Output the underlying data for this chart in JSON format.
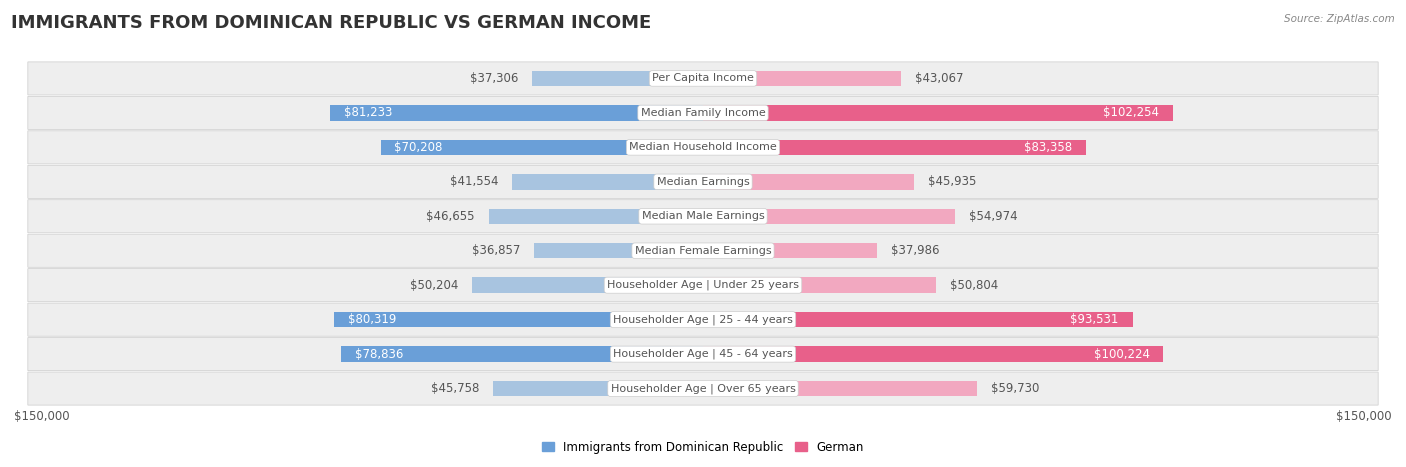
{
  "title": "IMMIGRANTS FROM DOMINICAN REPUBLIC VS GERMAN INCOME",
  "source": "Source: ZipAtlas.com",
  "categories": [
    "Per Capita Income",
    "Median Family Income",
    "Median Household Income",
    "Median Earnings",
    "Median Male Earnings",
    "Median Female Earnings",
    "Householder Age | Under 25 years",
    "Householder Age | 25 - 44 years",
    "Householder Age | 45 - 64 years",
    "Householder Age | Over 65 years"
  ],
  "dominican_values": [
    37306,
    81233,
    70208,
    41554,
    46655,
    36857,
    50204,
    80319,
    78836,
    45758
  ],
  "german_values": [
    43067,
    102254,
    83358,
    45935,
    54974,
    37986,
    50804,
    93531,
    100224,
    59730
  ],
  "dominican_labels": [
    "$37,306",
    "$81,233",
    "$70,208",
    "$41,554",
    "$46,655",
    "$36,857",
    "$50,204",
    "$80,319",
    "$78,836",
    "$45,758"
  ],
  "german_labels": [
    "$43,067",
    "$102,254",
    "$83,358",
    "$45,935",
    "$54,974",
    "$37,986",
    "$50,804",
    "$93,531",
    "$100,224",
    "$59,730"
  ],
  "dominican_color_light": "#a8c4e0",
  "dominican_color_dark": "#6a9fd8",
  "german_color_light": "#f2a8c0",
  "german_color_dark": "#e8608a",
  "bar_height": 0.45,
  "xlim": 150000,
  "x_label_left": "$150,000",
  "x_label_right": "$150,000",
  "legend_label_dominican": "Immigrants from Dominican Republic",
  "legend_label_german": "German",
  "fig_bg_color": "#ffffff",
  "row_bg_color": "#eeeeee",
  "title_fontsize": 13,
  "label_fontsize": 8.5,
  "category_fontsize": 8,
  "axis_label_fontsize": 8.5,
  "dom_dark_threshold": 65000,
  "ger_dark_threshold": 80000
}
